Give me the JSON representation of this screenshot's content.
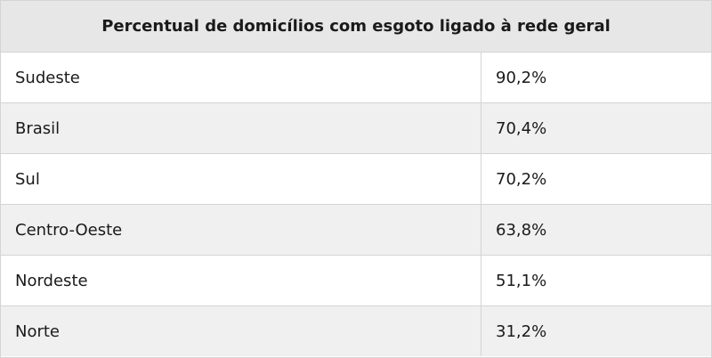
{
  "table": {
    "title": "Percentual de domicílios com esgoto ligado à rede geral",
    "rows": [
      [
        "Sudeste",
        "90,2%"
      ],
      [
        "Brasil",
        "70,4%"
      ],
      [
        "Sul",
        "70,2%"
      ],
      [
        "Centro-Oeste",
        "63,8%"
      ],
      [
        "Nordeste",
        "51,1%"
      ],
      [
        "Norte",
        "31,2%"
      ]
    ]
  }
}
